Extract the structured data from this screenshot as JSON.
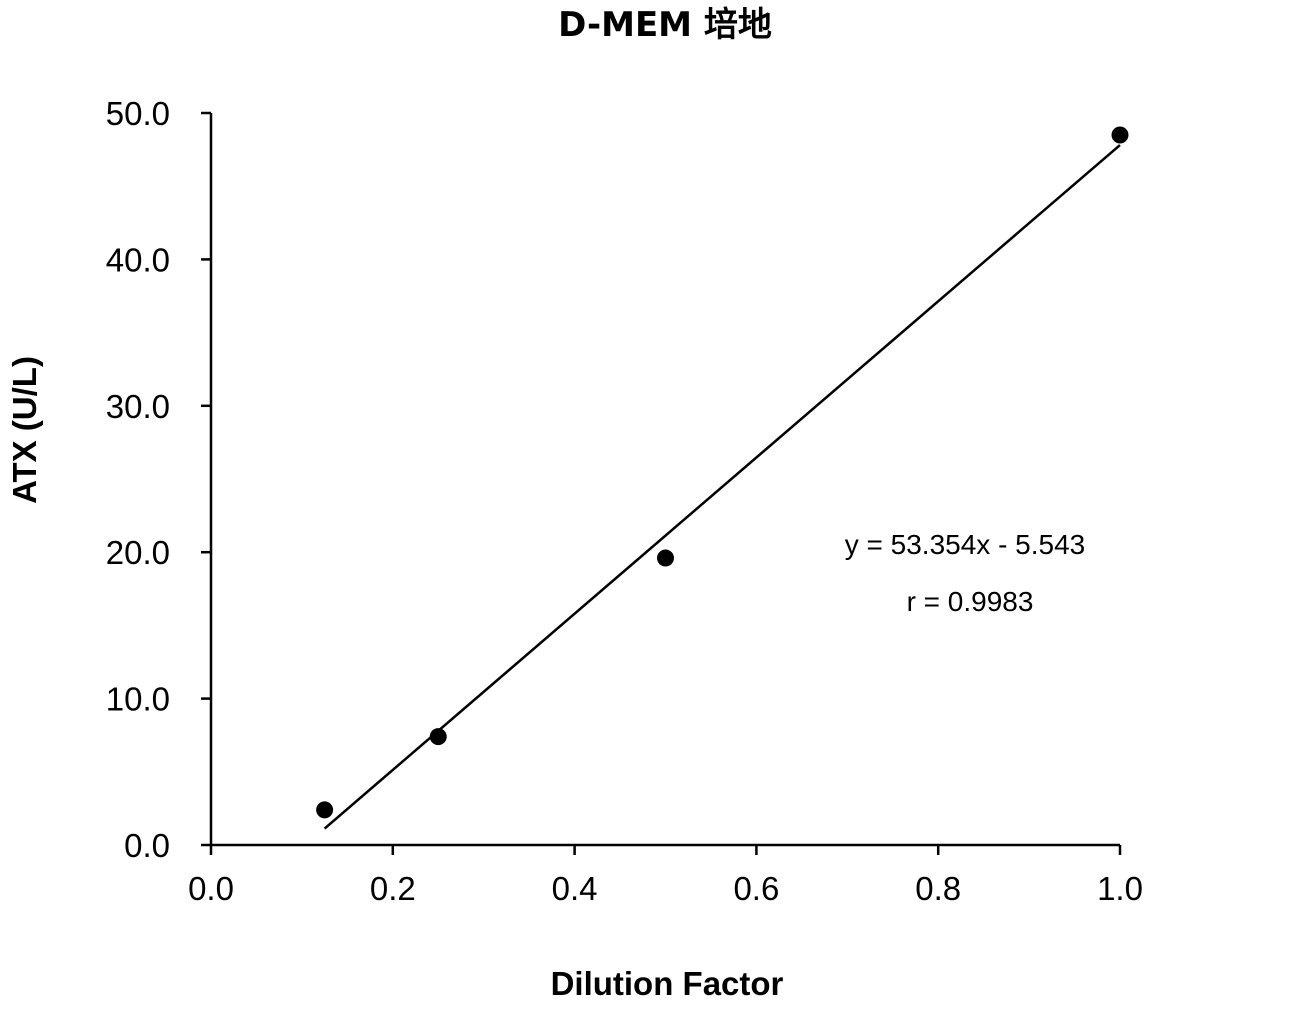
{
  "chart_data": {
    "type": "scatter",
    "title": "D-MEM 培地",
    "xlabel": "Dilution Factor",
    "ylabel": "ATX (U/L)",
    "xlim": [
      0.0,
      1.0
    ],
    "ylim": [
      0.0,
      50.0
    ],
    "xticks": [
      0.0,
      0.2,
      0.4,
      0.6,
      0.8,
      1.0
    ],
    "xtick_labels": [
      "0.0",
      "0.2",
      "0.4",
      "0.6",
      "0.8",
      "1.0"
    ],
    "yticks": [
      0.0,
      10.0,
      20.0,
      30.0,
      40.0,
      50.0
    ],
    "ytick_labels": [
      "0.0",
      "10.0",
      "20.0",
      "30.0",
      "40.0",
      "50.0"
    ],
    "grid": false,
    "legend": "none",
    "series": [
      {
        "name": "ATX",
        "color": "#000000",
        "x": [
          0.125,
          0.25,
          0.5,
          1.0
        ],
        "y": [
          2.4,
          7.4,
          19.6,
          48.5
        ]
      }
    ],
    "trendline": {
      "type": "linear",
      "slope": 53.354,
      "intercept": -5.543,
      "x_range": [
        0.125,
        1.0
      ],
      "color": "#000000"
    },
    "annotations": {
      "equation": "y = 53.354x - 5.543",
      "r_value": "r = 0.9983"
    }
  }
}
